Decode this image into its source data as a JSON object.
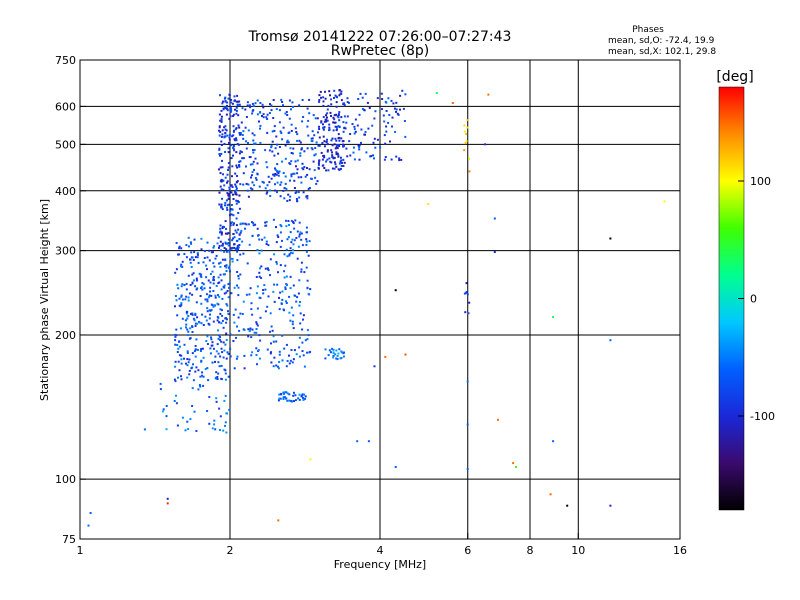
{
  "chart_data": {
    "type": "scatter",
    "title": "Tromsø 20141222 07:26:00–07:27:43",
    "subtitle": "RwPretec (8p)",
    "phase_box": {
      "title": "Phases",
      "line1": "mean, sd,O: -72.4, 19.9",
      "line2": "mean, sd,X: 102.1, 29.8"
    },
    "xlabel": "Frequency [MHz]",
    "ylabel": "Stationary phase Virtual Height [km]",
    "x_scale": "log",
    "y_scale": "log",
    "xlim": [
      1,
      16
    ],
    "ylim": [
      75,
      750
    ],
    "x_ticks": [
      1,
      2,
      4,
      6,
      8,
      10,
      16
    ],
    "x_tick_labels": [
      "1",
      "2",
      "4",
      "6",
      "8",
      "10",
      "16"
    ],
    "y_ticks": [
      75,
      100,
      200,
      300,
      400,
      500,
      600,
      750
    ],
    "y_tick_labels": [
      "75",
      "100",
      "200",
      "300",
      "400",
      "500",
      "600",
      "750"
    ],
    "x_gridlines": [
      2,
      4,
      6,
      8,
      10
    ],
    "y_gridlines": [
      100,
      200,
      300,
      400,
      500,
      600
    ],
    "grid": true,
    "colorbar": {
      "label": "[deg]",
      "min": -180,
      "max": 180,
      "tick_values": [
        100,
        0,
        -100
      ],
      "tick_labels": [
        "100",
        "0",
        "-100"
      ],
      "stops": [
        "#000000",
        "#3a0a6e",
        "#1a28d8",
        "#0060ff",
        "#00c8ff",
        "#00ff90",
        "#40ff00",
        "#ffff00",
        "#ff8c00",
        "#ff0000"
      ]
    },
    "clusters": [
      {
        "fmin": 1.55,
        "fmax": 2.0,
        "hmin": 160,
        "hmax": 320,
        "phase": -72,
        "count": 360
      },
      {
        "fmin": 1.9,
        "fmax": 2.1,
        "hmin": 300,
        "hmax": 640,
        "phase": -90,
        "count": 260
      },
      {
        "fmin": 2.0,
        "fmax": 2.9,
        "hmin": 170,
        "hmax": 350,
        "phase": -70,
        "count": 300
      },
      {
        "fmin": 2.1,
        "fmax": 3.0,
        "hmin": 380,
        "hmax": 620,
        "phase": -80,
        "count": 260
      },
      {
        "fmin": 3.0,
        "fmax": 3.4,
        "hmin": 440,
        "hmax": 650,
        "phase": -100,
        "count": 160
      },
      {
        "fmin": 3.3,
        "fmax": 4.5,
        "hmin": 460,
        "hmax": 650,
        "phase": -85,
        "count": 110
      },
      {
        "fmin": 2.5,
        "fmax": 2.85,
        "hmin": 145,
        "hmax": 152,
        "phase": -60,
        "count": 40
      },
      {
        "fmin": 3.1,
        "fmax": 3.4,
        "hmin": 178,
        "hmax": 188,
        "phase": -55,
        "count": 25
      },
      {
        "fmin": 1.45,
        "fmax": 2.0,
        "hmin": 125,
        "hmax": 160,
        "phase": -60,
        "count": 45
      },
      {
        "fmin": 5.9,
        "fmax": 6.05,
        "hmin": 220,
        "hmax": 260,
        "phase": -95,
        "count": 8
      },
      {
        "fmin": 5.9,
        "fmax": 6.05,
        "hmin": 420,
        "hmax": 580,
        "phase": 110,
        "count": 10
      }
    ],
    "points": [
      {
        "f": 1.05,
        "h": 85,
        "phase": -60
      },
      {
        "f": 1.04,
        "h": 80,
        "phase": -55
      },
      {
        "f": 1.5,
        "h": 91,
        "phase": -110
      },
      {
        "f": 1.5,
        "h": 89,
        "phase": 170
      },
      {
        "f": 1.35,
        "h": 127,
        "phase": -55
      },
      {
        "f": 2.5,
        "h": 82,
        "phase": 150
      },
      {
        "f": 2.9,
        "h": 110,
        "phase": 100
      },
      {
        "f": 3.8,
        "h": 120,
        "phase": -60
      },
      {
        "f": 3.6,
        "h": 120,
        "phase": -58
      },
      {
        "f": 4.1,
        "h": 180,
        "phase": 150
      },
      {
        "f": 4.5,
        "h": 182,
        "phase": 155
      },
      {
        "f": 4.3,
        "h": 106,
        "phase": -60
      },
      {
        "f": 3.9,
        "h": 172,
        "phase": -90
      },
      {
        "f": 4.3,
        "h": 248,
        "phase": -180
      },
      {
        "f": 5.0,
        "h": 375,
        "phase": 110
      },
      {
        "f": 6.0,
        "h": 105,
        "phase": -60
      },
      {
        "f": 6.0,
        "h": 160,
        "phase": -55
      },
      {
        "f": 6.0,
        "h": 130,
        "phase": -60
      },
      {
        "f": 6.6,
        "h": 635,
        "phase": 150
      },
      {
        "f": 6.8,
        "h": 350,
        "phase": -70
      },
      {
        "f": 6.8,
        "h": 298,
        "phase": -100
      },
      {
        "f": 6.9,
        "h": 133,
        "phase": 150
      },
      {
        "f": 6.5,
        "h": 500,
        "phase": -95
      },
      {
        "f": 7.4,
        "h": 108,
        "phase": 150
      },
      {
        "f": 7.5,
        "h": 106,
        "phase": 60
      },
      {
        "f": 8.9,
        "h": 218,
        "phase": 40
      },
      {
        "f": 8.9,
        "h": 120,
        "phase": -60
      },
      {
        "f": 8.8,
        "h": 93,
        "phase": 150
      },
      {
        "f": 9.5,
        "h": 88,
        "phase": -180
      },
      {
        "f": 11.6,
        "h": 88,
        "phase": -110
      },
      {
        "f": 11.6,
        "h": 195,
        "phase": -60
      },
      {
        "f": 11.6,
        "h": 318,
        "phase": -180
      },
      {
        "f": 14.9,
        "h": 380,
        "phase": 100
      },
      {
        "f": 5.2,
        "h": 640,
        "phase": 30
      },
      {
        "f": 5.6,
        "h": 610,
        "phase": 150
      }
    ]
  }
}
